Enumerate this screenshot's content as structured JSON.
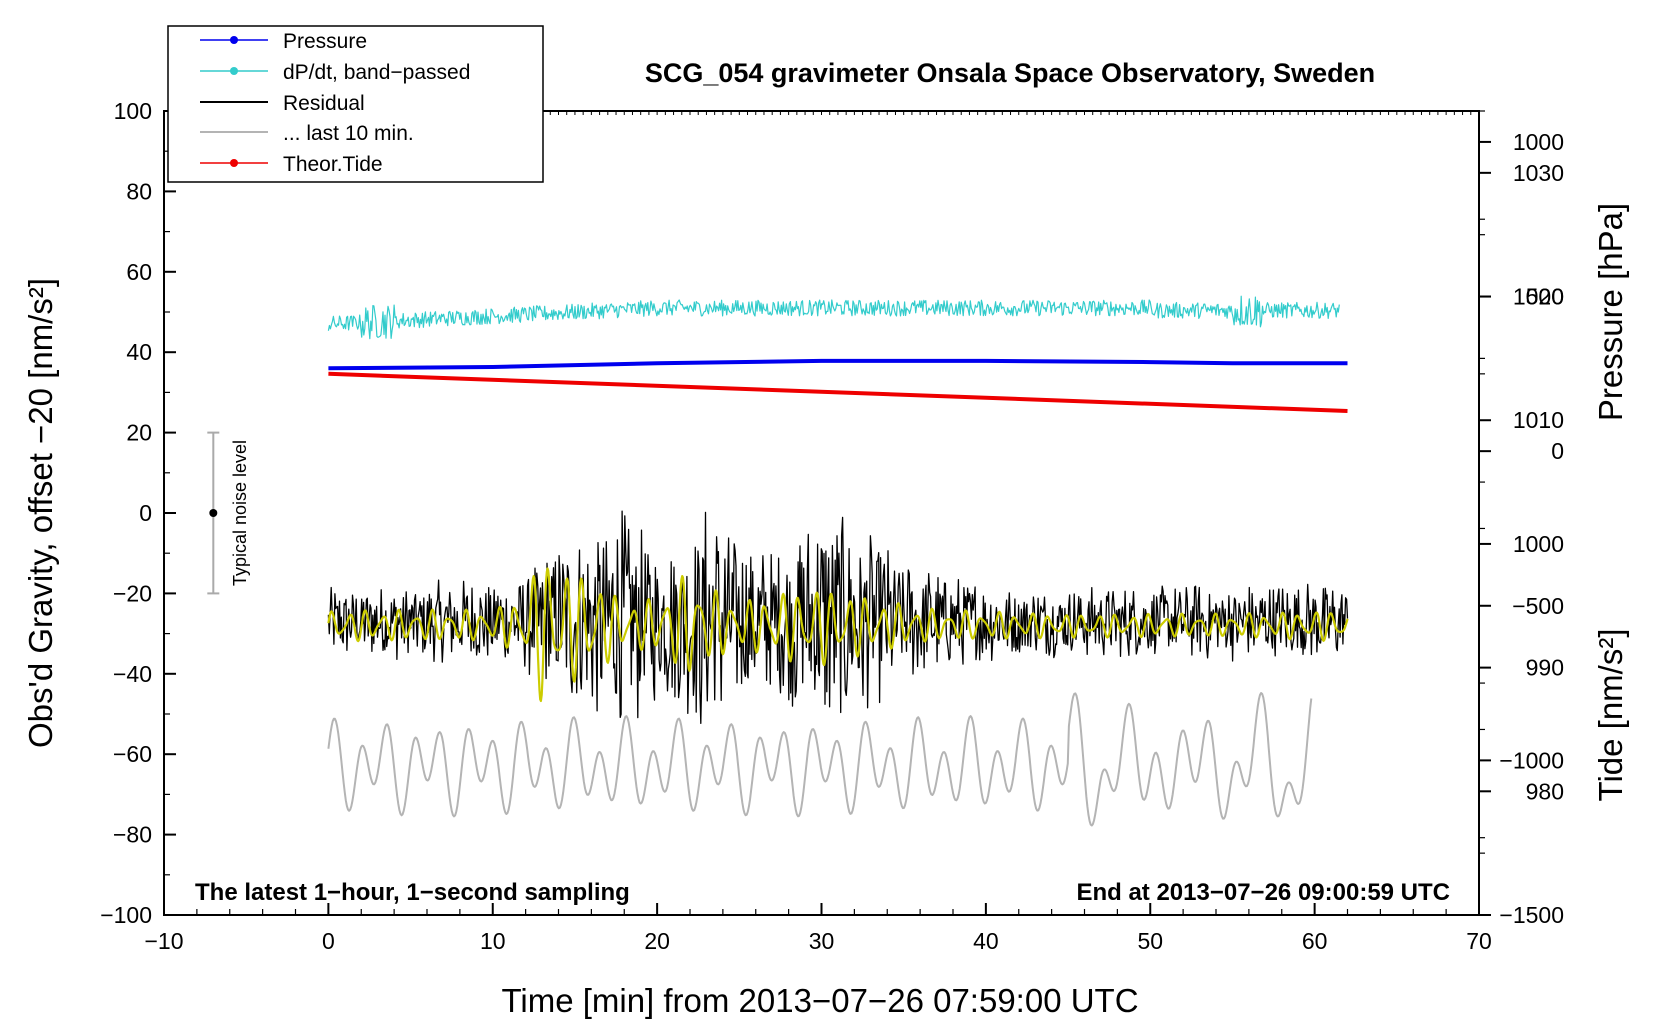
{
  "chart_data": {
    "type": "line",
    "title": "SCG_054 gravimeter Onsala Space Observatory, Sweden",
    "xlabel": "Time [min] from 2013−07−26 07:59:00 UTC",
    "ylabel": "Obs'd Gravity, offset −20 [nm/s²]",
    "ylabel_right_top": "Pressure [hPa]",
    "ylabel_right_bottom": "Tide [nm/s²]",
    "xlim": [
      -10,
      70
    ],
    "ylim": [
      -100,
      100
    ],
    "pressure_axis_range": [
      970,
      1035
    ],
    "tide_axis_range": [
      -1500,
      1100
    ],
    "x_ticks": [
      {
        "value": -10,
        "label": "−10"
      },
      {
        "value": 0,
        "label": "0"
      },
      {
        "value": 10,
        "label": "10"
      },
      {
        "value": 20,
        "label": "20"
      },
      {
        "value": 30,
        "label": "30"
      },
      {
        "value": 40,
        "label": "40"
      },
      {
        "value": 50,
        "label": "50"
      },
      {
        "value": 60,
        "label": "60"
      },
      {
        "value": 70,
        "label": "70"
      }
    ],
    "y_ticks": [
      {
        "value": 100,
        "label": "100"
      },
      {
        "value": 80,
        "label": "80"
      },
      {
        "value": 60,
        "label": "60"
      },
      {
        "value": 40,
        "label": "40"
      },
      {
        "value": 20,
        "label": "20"
      },
      {
        "value": 0,
        "label": "0"
      },
      {
        "value": -20,
        "label": "−20"
      },
      {
        "value": -40,
        "label": "−40"
      },
      {
        "value": -60,
        "label": "−60"
      },
      {
        "value": -80,
        "label": "−80"
      },
      {
        "value": -100,
        "label": "−100"
      }
    ],
    "pressure_ticks": [
      {
        "value": 1030,
        "label": "1030"
      },
      {
        "value": 1020,
        "label": "1020"
      },
      {
        "value": 1010,
        "label": "1010"
      },
      {
        "value": 1000,
        "label": "1000"
      },
      {
        "value": 990,
        "label": "990"
      },
      {
        "value": 980,
        "label": "980"
      }
    ],
    "tide_ticks": [
      {
        "value": 1000,
        "label": "1000"
      },
      {
        "value": 500,
        "label": "500"
      },
      {
        "value": 0,
        "label": "0"
      },
      {
        "value": -500,
        "label": "−500"
      },
      {
        "value": -1000,
        "label": "−1000"
      },
      {
        "value": -1500,
        "label": "−1500"
      }
    ],
    "series": [
      {
        "name": "Pressure",
        "color": "#0000ee",
        "axis": "pressure",
        "x": [
          0,
          10,
          20,
          30,
          40,
          50,
          55,
          62
        ],
        "values": [
          1014.2,
          1014.3,
          1014.6,
          1014.8,
          1014.8,
          1014.7,
          1014.6,
          1014.6
        ]
      },
      {
        "name": "dP/dt, band−passed",
        "color": "#33cccc",
        "axis": "gravity",
        "x_range": [
          0,
          61.5
        ],
        "center": [
          47,
          51
        ],
        "amplitude": 2.5
      },
      {
        "name": "Residual",
        "color": "#000000",
        "axis": "gravity",
        "x_range": [
          0,
          62
        ],
        "center": -27,
        "envelope_x": [
          0,
          5,
          10,
          12,
          14,
          16,
          18,
          20,
          22,
          23,
          25,
          27,
          30,
          32,
          35,
          38,
          42,
          48,
          55,
          62
        ],
        "envelope_amp": [
          9,
          10,
          11,
          14,
          20,
          24,
          30,
          20,
          24,
          32,
          22,
          18,
          30,
          26,
          16,
          12,
          9,
          9,
          10,
          10
        ]
      },
      {
        "name": "... last 10 min.",
        "color": "#b4b4b4",
        "axis": "gravity",
        "x_range": [
          0,
          59.8
        ],
        "center": -63,
        "amplitude": 10
      },
      {
        "name": "Theor.Tide",
        "color": "#ee0000",
        "axis": "tide",
        "x": [
          0,
          62
        ],
        "values": [
          250,
          130
        ]
      },
      {
        "name": "band-passed residual",
        "color": "#cccc00",
        "axis": "gravity",
        "x_range": [
          0,
          62
        ],
        "center": -28,
        "envelope_x": [
          0,
          10,
          12,
          13,
          14,
          16,
          18,
          20,
          22,
          23,
          25,
          28,
          30,
          33,
          37,
          45,
          55,
          62
        ],
        "envelope_amp": [
          4,
          4,
          8,
          20,
          15,
          13,
          6,
          7,
          14,
          10,
          6,
          9,
          10,
          7,
          4,
          3,
          3,
          4
        ]
      }
    ],
    "legend": {
      "placement": "top-left",
      "entries": [
        {
          "label": "Pressure",
          "color": "#0000ee",
          "marker": true
        },
        {
          "label": "dP/dt, band−passed",
          "color": "#33cccc",
          "marker": true
        },
        {
          "label": "Residual",
          "color": "#000000",
          "marker": false
        },
        {
          "label": "... last 10 min.",
          "color": "#b4b4b4",
          "marker": false
        },
        {
          "label": "Theor.Tide",
          "color": "#ee0000",
          "marker": true
        }
      ]
    },
    "annotations": {
      "noise_label": "Typical noise level",
      "noise_x": -7,
      "noise_y": [
        -20,
        20
      ],
      "bottom_left": "The latest 1−hour, 1−second sampling",
      "bottom_right": "End at 2013−07−26 09:00:59 UTC"
    }
  }
}
